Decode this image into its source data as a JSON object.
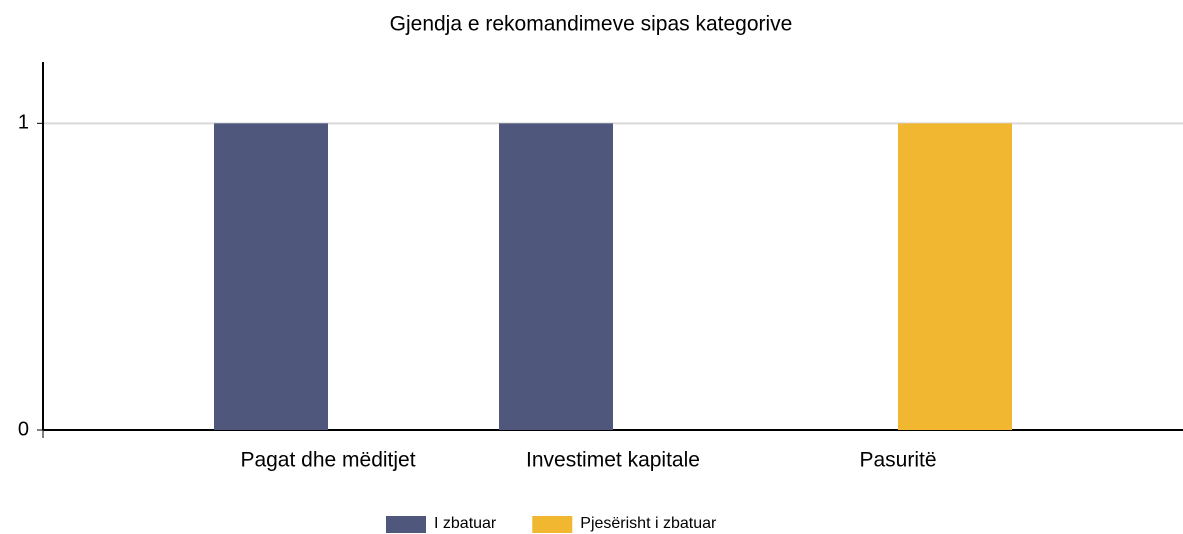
{
  "chart_data": {
    "type": "bar",
    "title": "Gjendja e rekomandimeve sipas kategorive",
    "categories": [
      "Pagat dhe mëditjet",
      "Investimet kapitale",
      "Pasuritë"
    ],
    "series": [
      {
        "name": "I zbatuar",
        "color": "#4f587c",
        "values": [
          1,
          1,
          0
        ]
      },
      {
        "name": "Pjesërisht i zbatuar",
        "color": "#f2b731",
        "values": [
          0,
          0,
          1
        ]
      }
    ],
    "ylim": [
      0,
      1.2
    ],
    "yticks": [
      0,
      1
    ],
    "grid": true
  }
}
